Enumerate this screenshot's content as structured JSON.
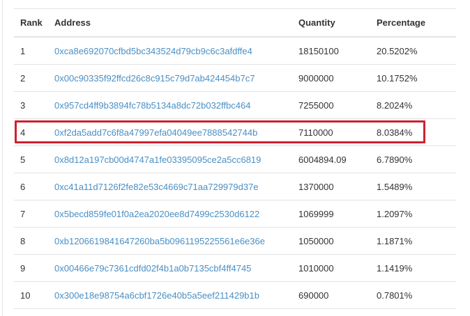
{
  "table": {
    "headers": [
      "Rank",
      "Address",
      "Quantity",
      "Percentage"
    ],
    "rows": [
      {
        "rank": "1",
        "address": "0xca8e692070cfbd5bc343524d79cb9c6c3afdffe4",
        "quantity": "18150100",
        "percentage": "20.5202%"
      },
      {
        "rank": "2",
        "address": "0x00c90335f92ffcd26c8c915c79d7ab424454b7c7",
        "quantity": "9000000",
        "percentage": "10.1752%"
      },
      {
        "rank": "3",
        "address": "0x957cd4ff9b3894fc78b5134a8dc72b032ffbc464",
        "quantity": "7255000",
        "percentage": "8.2024%"
      },
      {
        "rank": "4",
        "address": "0xf2da5add7c6f8a47997efa04049ee7888542744b",
        "quantity": "7110000",
        "percentage": "8.0384%"
      },
      {
        "rank": "5",
        "address": "0x8d12a197cb00d4747a1fe03395095ce2a5cc6819",
        "quantity": "6004894.09",
        "percentage": "6.7890%"
      },
      {
        "rank": "6",
        "address": "0xc41a11d7126f2fe82e53c4669c71aa729979d37e",
        "quantity": "1370000",
        "percentage": "1.5489%"
      },
      {
        "rank": "7",
        "address": "0x5becd859fe01f0a2ea2020ee8d7499c2530d6122",
        "quantity": "1069999",
        "percentage": "1.2097%"
      },
      {
        "rank": "8",
        "address": "0xb1206619841647260ba5b0961195225561e6e36e",
        "quantity": "1050000",
        "percentage": "1.1871%"
      },
      {
        "rank": "9",
        "address": "0x00466e79c7361cdfd02f4b1a0b7135cbf4ff4745",
        "quantity": "1010000",
        "percentage": "1.1419%"
      },
      {
        "rank": "10",
        "address": "0x300e18e98754a6cbf1726e40b5a5eef211429b1b",
        "quantity": "690000",
        "percentage": "0.7801%"
      }
    ],
    "highlighted_rank": "4",
    "colors": {
      "link": "#4a8fc4",
      "highlight": "#d0202e",
      "text": "#333333"
    }
  }
}
